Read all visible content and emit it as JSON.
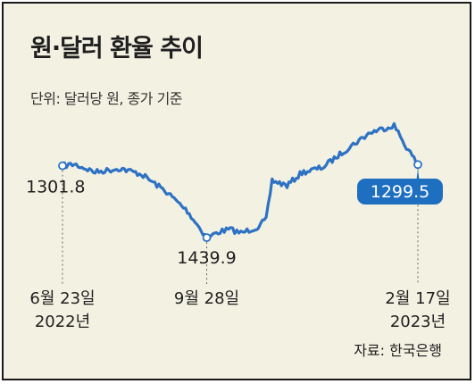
{
  "title": "원·달러 환율 추이",
  "subtitle": "단위: 달러당 원, 종가 기준",
  "source": "자료: 한국은행",
  "colors": {
    "line": "#2e72c4",
    "badge": "#1f6fc0",
    "background": "#f3f1e2",
    "text": "#1f1f1f",
    "guide": "#666666"
  },
  "chart_data": {
    "type": "line",
    "title": "원·달러 환율 추이",
    "subtitle": "단위: 달러당 원, 종가 기준",
    "y_axis_inverted": true,
    "x_ticks": [
      {
        "line1": "6월 23일",
        "line2": "2022년"
      },
      {
        "line1": "9월 28일",
        "line2": ""
      },
      {
        "line1": "2월 17일",
        "line2": "2023년"
      }
    ],
    "x": [
      "2022-06-23",
      "2022-07-01",
      "2022-07-15",
      "2022-08-01",
      "2022-08-15",
      "2022-09-01",
      "2022-09-15",
      "2022-09-28",
      "2022-10-07",
      "2022-10-14",
      "2022-10-21",
      "2022-11-01",
      "2022-11-07",
      "2022-11-11",
      "2022-11-21",
      "2022-12-01",
      "2022-12-15",
      "2023-01-02",
      "2023-01-16",
      "2023-02-01",
      "2023-02-08",
      "2023-02-17"
    ],
    "values": [
      1301.8,
      1299,
      1314,
      1307,
      1318,
      1352,
      1389,
      1439.9,
      1428,
      1424,
      1431,
      1420,
      1405,
      1330,
      1340,
      1315,
      1305,
      1266,
      1238,
      1224,
      1260,
      1299.5
    ],
    "annotations": [
      {
        "label": "1301.8",
        "date": "2022-06-23",
        "value": 1301.8,
        "style": "plain"
      },
      {
        "label": "1439.9",
        "date": "2022-09-28",
        "value": 1439.9,
        "style": "plain"
      },
      {
        "label": "1299.5",
        "date": "2023-02-17",
        "value": 1299.5,
        "style": "badge"
      }
    ],
    "ylim": [
      1215,
      1450
    ]
  }
}
